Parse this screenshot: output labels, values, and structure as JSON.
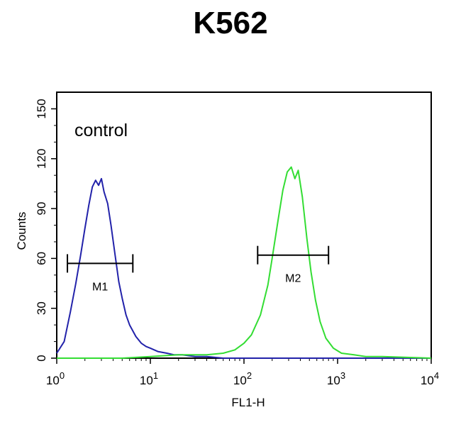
{
  "chart_data": {
    "type": "line",
    "title": "K562",
    "xlabel": "FL1-H",
    "ylabel": "Counts",
    "xscale": "log",
    "xlim": [
      1,
      10000
    ],
    "ylim": [
      0,
      160
    ],
    "x_ticks": [
      {
        "value": 1,
        "base": "10",
        "exp": "0"
      },
      {
        "value": 10,
        "base": "10",
        "exp": "1"
      },
      {
        "value": 100,
        "base": "10",
        "exp": "2"
      },
      {
        "value": 1000,
        "base": "10",
        "exp": "3"
      },
      {
        "value": 10000,
        "base": "10",
        "exp": "4"
      }
    ],
    "y_ticks": [
      "0",
      "30",
      "60",
      "90",
      "120",
      "150"
    ],
    "annotation": "control",
    "gates": [
      {
        "label": "M1",
        "x_start": 1.3,
        "x_end": 6.5,
        "y": 57
      },
      {
        "label": "M2",
        "x_start": 140,
        "x_end": 800,
        "y": 62
      }
    ],
    "series": [
      {
        "color": "#2222aa",
        "x": [
          1,
          1.2,
          1.4,
          1.6,
          1.8,
          2.0,
          2.2,
          2.4,
          2.6,
          2.8,
          3.0,
          3.2,
          3.5,
          3.8,
          4.2,
          4.6,
          5.0,
          5.5,
          6.0,
          7.0,
          8.0,
          9.0,
          10,
          12,
          15,
          18,
          22,
          30,
          40,
          60,
          100,
          200,
          500,
          1000,
          10000
        ],
        "y": [
          3,
          10,
          28,
          45,
          62,
          78,
          92,
          103,
          107,
          104,
          108,
          100,
          93,
          80,
          62,
          46,
          36,
          26,
          20,
          13,
          9,
          7,
          6,
          4,
          3,
          2,
          2,
          1,
          1,
          0,
          0,
          0,
          0,
          0,
          0
        ]
      },
      {
        "color": "#33dd33",
        "x": [
          1,
          5,
          10,
          20,
          40,
          60,
          80,
          100,
          120,
          150,
          180,
          200,
          230,
          260,
          290,
          320,
          350,
          380,
          420,
          470,
          520,
          580,
          650,
          750,
          900,
          1100,
          1500,
          2000,
          3000,
          10000
        ],
        "y": [
          0,
          0,
          1,
          2,
          2,
          3,
          5,
          9,
          14,
          26,
          44,
          60,
          82,
          101,
          112,
          115,
          108,
          113,
          97,
          72,
          52,
          35,
          22,
          12,
          6,
          3,
          2,
          1,
          1,
          0
        ]
      }
    ]
  }
}
